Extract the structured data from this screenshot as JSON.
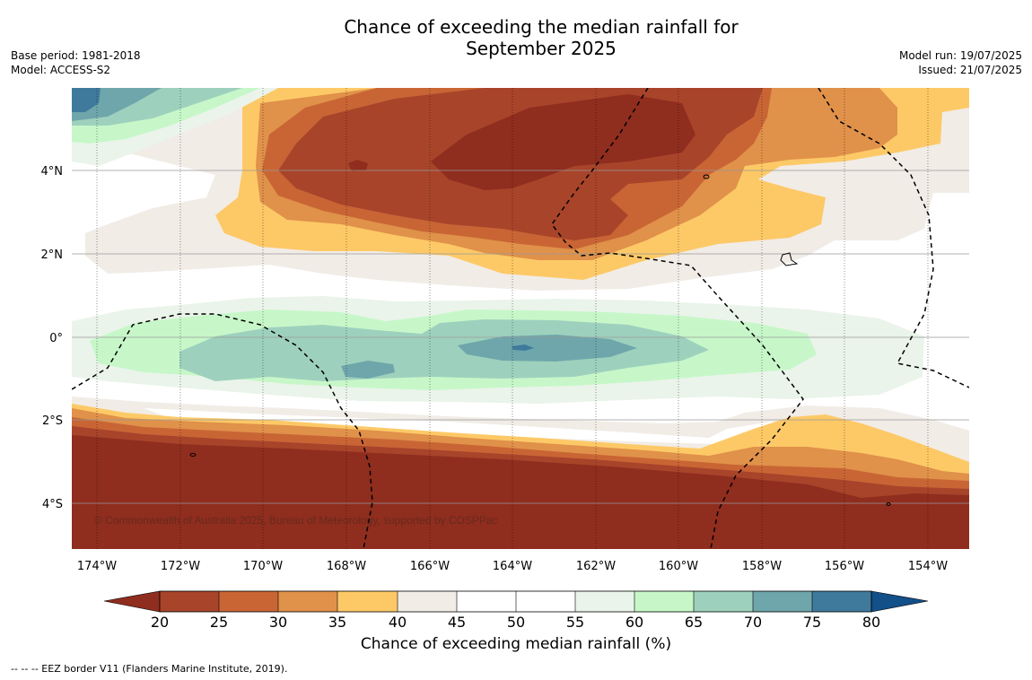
{
  "title_line1": "Chance of exceeding the median rainfall for",
  "title_line2": "September 2025",
  "meta_left": {
    "base_period": "Base period: 1981-2018",
    "model": "Model: ACCESS-S2"
  },
  "meta_right": {
    "model_run": "Model run: 19/07/2025",
    "issued": "Issued: 21/07/2025"
  },
  "map": {
    "lon_ticks": [
      "174°W",
      "172°W",
      "170°W",
      "168°W",
      "166°W",
      "164°W",
      "162°W",
      "160°W",
      "158°W",
      "156°W",
      "154°W"
    ],
    "lat_ticks": [
      "4°N",
      "2°N",
      "0°",
      "2°S",
      "4°S"
    ],
    "copyright": "© Commonwealth of Australia 2025, Bureau of Meteorology, supported by COSPPac"
  },
  "colorbar": {
    "label": "Chance of exceeding median rainfall (%)",
    "ticks": [
      "20",
      "25",
      "30",
      "35",
      "40",
      "45",
      "50",
      "55",
      "60",
      "65",
      "70",
      "75",
      "80"
    ],
    "colors": {
      "lt20": "#8f2d1f",
      "c20": "#a8442a",
      "c25": "#c96535",
      "c30": "#e0914a",
      "c35": "#fdc967",
      "c40": "#f1ece6",
      "c45": "#ffffff",
      "c50": "#ffffff",
      "c55": "#eaf4ea",
      "c60": "#c7f7c9",
      "c65": "#9ed1bd",
      "c70": "#6fa6ab",
      "c75": "#3f7a9c",
      "gt80": "#134f89"
    }
  },
  "footnote": "--  --  -- EEZ border V11 (Flanders Marine Institute, 2019)."
}
